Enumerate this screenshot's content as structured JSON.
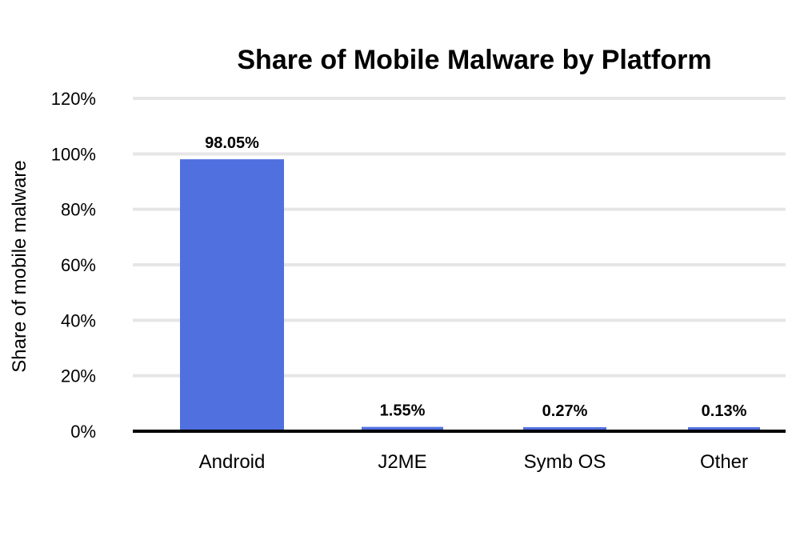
{
  "chart_data": {
    "type": "bar",
    "title": "Share of Mobile Malware by Platform",
    "xlabel": "",
    "ylabel": "Share of mobile malware",
    "categories": [
      "Android",
      "J2ME",
      "Symb OS",
      "Other"
    ],
    "values": [
      98.05,
      1.55,
      0.27,
      0.13
    ],
    "data_labels": [
      "98.05%",
      "1.55%",
      "0.27%",
      "0.13%"
    ],
    "ylim": [
      0,
      120
    ],
    "y_ticks": [
      0,
      20,
      40,
      60,
      80,
      100,
      120
    ],
    "y_tick_labels": [
      "0%",
      "20%",
      "40%",
      "60%",
      "80%",
      "100%",
      "120%"
    ],
    "grid": true,
    "legend": "none",
    "colors": {
      "bar": "#5170e0",
      "grid": "#e6e6e6",
      "baseline": "#000000",
      "text": "#000000"
    }
  }
}
